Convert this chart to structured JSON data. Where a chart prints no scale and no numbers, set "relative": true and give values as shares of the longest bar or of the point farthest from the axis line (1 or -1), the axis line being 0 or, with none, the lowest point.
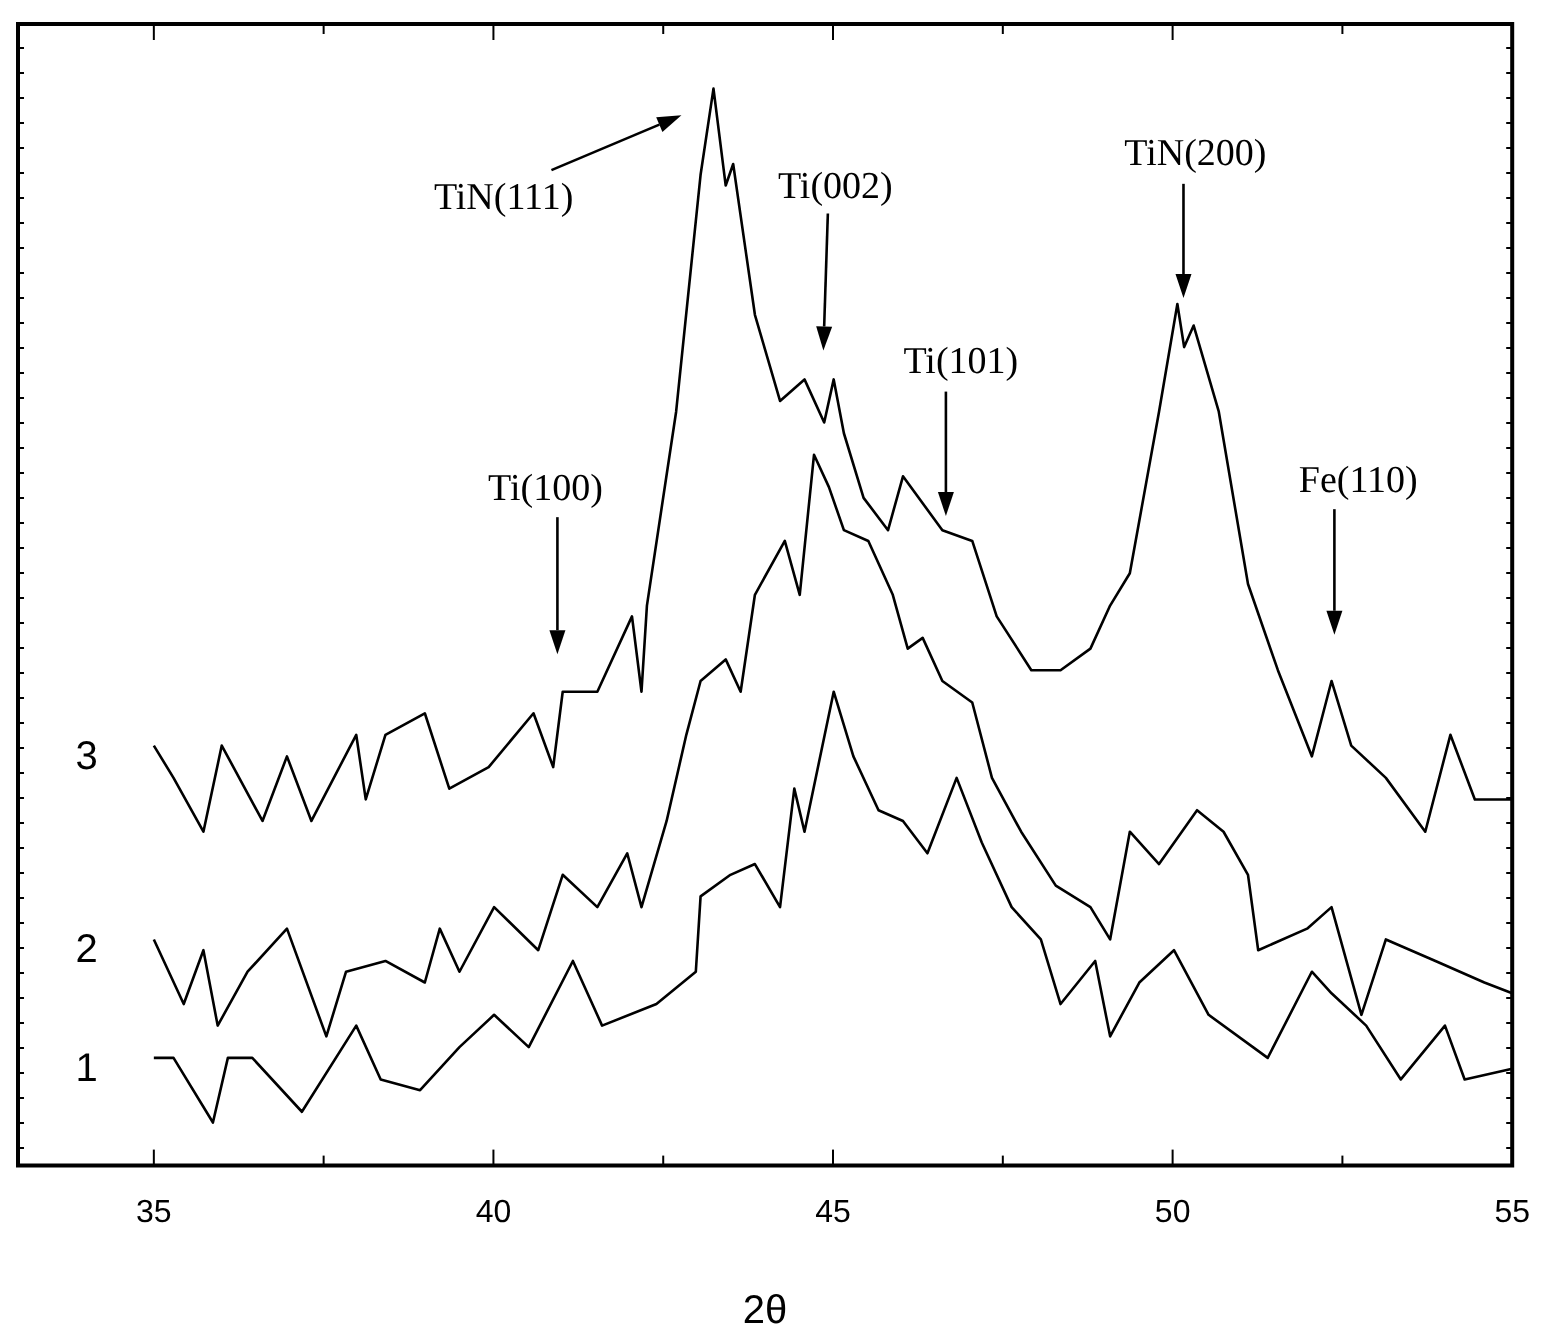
{
  "chart_data": {
    "type": "line",
    "xlabel": "2θ",
    "relative": true,
    "xlim": [
      33,
      55
    ],
    "xticks": [
      35,
      {
        "value": 37.5,
        "label": null
      },
      40,
      {
        "value": 42.5,
        "label": null
      },
      45,
      {
        "value": 47.5,
        "label": null
      },
      50,
      {
        "value": 52.5,
        "label": null
      },
      55
    ],
    "grid": false,
    "legend": "left",
    "marker": "none",
    "line_style": "solid",
    "series": [
      {
        "name": "1",
        "color": "#000000",
        "x": [
          35,
          35.29,
          35.87,
          36.09,
          36.45,
          37.18,
          37.98,
          38.34,
          38.92,
          39.5,
          40.01,
          40.52,
          41.17,
          41.6,
          42.4,
          42.98,
          43.05,
          43.49,
          43.85,
          44.22,
          44.43,
          44.58,
          45.01,
          45.3,
          45.67,
          46.03,
          46.39,
          46.82,
          47.19,
          47.63,
          48.06,
          48.35,
          48.86,
          49.08,
          49.51,
          50.02,
          50.53,
          51.4,
          52.05,
          52.34,
          52.85,
          53.36,
          54.01,
          54.3,
          55
        ],
        "values": [
          0.1,
          0.1,
          0.04,
          0.1,
          0.1,
          0.05,
          0.13,
          0.08,
          0.07,
          0.11,
          0.14,
          0.11,
          0.19,
          0.13,
          0.15,
          0.18,
          0.25,
          0.27,
          0.28,
          0.24,
          0.35,
          0.31,
          0.44,
          0.38,
          0.33,
          0.32,
          0.29,
          0.36,
          0.3,
          0.24,
          0.21,
          0.15,
          0.19,
          0.12,
          0.17,
          0.2,
          0.14,
          0.1,
          0.18,
          0.16,
          0.13,
          0.08,
          0.13,
          0.08,
          0.09
        ]
      },
      {
        "name": "2",
        "color": "#000000",
        "x": [
          35,
          35.44,
          35.73,
          35.94,
          36.38,
          36.96,
          37.54,
          37.83,
          38.41,
          38.99,
          39.21,
          39.5,
          40.01,
          40.66,
          41.02,
          41.53,
          41.97,
          42.18,
          42.55,
          42.84,
          43.05,
          43.42,
          43.64,
          43.85,
          44.29,
          44.51,
          44.72,
          44.94,
          45.16,
          45.52,
          45.88,
          46.1,
          46.32,
          46.61,
          47.05,
          47.34,
          47.77,
          48.28,
          48.79,
          49.08,
          49.37,
          49.8,
          50.36,
          50.75,
          51.11,
          51.26,
          51.98,
          52.34,
          52.78,
          53.14,
          53.87,
          54.59,
          55
        ],
        "values": [
          0.21,
          0.15,
          0.2,
          0.13,
          0.18,
          0.22,
          0.12,
          0.18,
          0.19,
          0.17,
          0.22,
          0.18,
          0.24,
          0.2,
          0.27,
          0.24,
          0.29,
          0.24,
          0.32,
          0.4,
          0.45,
          0.47,
          0.44,
          0.53,
          0.58,
          0.53,
          0.66,
          0.63,
          0.59,
          0.58,
          0.53,
          0.48,
          0.49,
          0.45,
          0.43,
          0.36,
          0.31,
          0.26,
          0.24,
          0.21,
          0.31,
          0.28,
          0.33,
          0.31,
          0.27,
          0.2,
          0.22,
          0.24,
          0.14,
          0.21,
          0.19,
          0.17,
          0.16
        ]
      },
      {
        "name": "3",
        "color": "#000000",
        "x": [
          35,
          35.29,
          35.73,
          36.0,
          36.6,
          36.96,
          37.32,
          37.98,
          38.12,
          38.41,
          38.99,
          39.35,
          39.93,
          40.59,
          40.88,
          41.02,
          41.53,
          42.04,
          42.18,
          42.26,
          42.69,
          43.05,
          43.24,
          43.42,
          43.53,
          43.85,
          44.22,
          44.58,
          44.87,
          45.01,
          45.16,
          45.45,
          45.81,
          46.03,
          46.61,
          47.05,
          47.41,
          47.92,
          48.35,
          48.79,
          49.08,
          49.37,
          49.8,
          50.07,
          50.17,
          50.31,
          50.68,
          51.11,
          51.55,
          52.05,
          52.34,
          52.63,
          53.14,
          53.72,
          54.09,
          54.45,
          55
        ],
        "values": [
          0.39,
          0.36,
          0.31,
          0.39,
          0.32,
          0.38,
          0.32,
          0.4,
          0.34,
          0.4,
          0.42,
          0.35,
          0.37,
          0.42,
          0.37,
          0.44,
          0.44,
          0.51,
          0.44,
          0.52,
          0.7,
          0.92,
          1,
          0.91,
          0.93,
          0.79,
          0.71,
          0.73,
          0.69,
          0.73,
          0.68,
          0.62,
          0.59,
          0.64,
          0.59,
          0.58,
          0.51,
          0.46,
          0.46,
          0.48,
          0.52,
          0.55,
          0.7,
          0.8,
          0.76,
          0.78,
          0.7,
          0.54,
          0.46,
          0.38,
          0.45,
          0.39,
          0.36,
          0.31,
          0.4,
          0.34,
          0.34
        ]
      }
    ],
    "annotations": [
      "TiN(111)",
      "Ti(002)",
      "Ti(101)",
      "Ti(100)",
      "TiN(200)",
      "Fe(110)"
    ]
  }
}
